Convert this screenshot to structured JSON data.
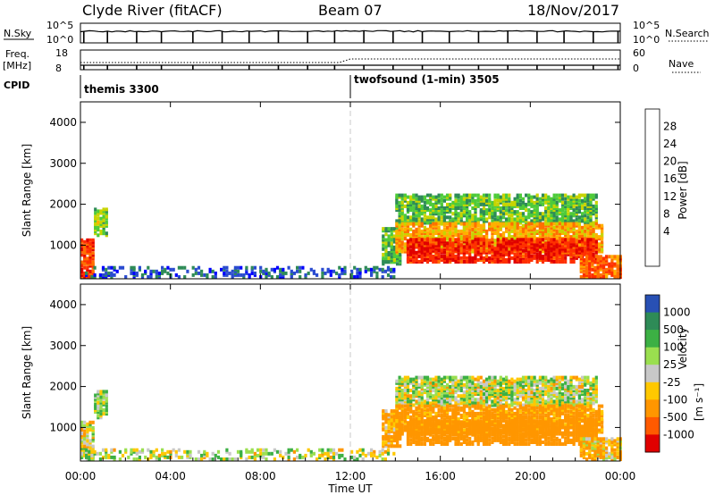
{
  "header": {
    "station": "Clyde River (fitACF)",
    "beam": "Beam 07",
    "date": "18/Nov/2017"
  },
  "top_panels": {
    "nsky_label": "N.Sky",
    "nsky_ticks": [
      "10^5",
      "10^0"
    ],
    "nsearch_label": "N.Search",
    "nsearch_ticks": [
      "10^5",
      "10^0"
    ],
    "freq_label_1": "Freq.",
    "freq_label_2": "[MHz]",
    "freq_ticks": [
      "18",
      "8"
    ],
    "nave_label": "Nave",
    "nave_ticks": [
      "60",
      "0"
    ],
    "cpid_label": "CPID",
    "cpid_segments": [
      {
        "name": "themis 3300",
        "start_hour": 0
      },
      {
        "name": "twofsound (1-min) 3505",
        "start_hour": 12
      }
    ]
  },
  "panels": [
    {
      "name": "power",
      "ylabel": "Slant Range [km]",
      "yticks": [
        "4000",
        "3000",
        "2000",
        "1000"
      ],
      "colorbar_label": "Power [dB]",
      "colorbar_ticks": [
        "28",
        "24",
        "20",
        "16",
        "12",
        "8",
        "4"
      ],
      "colors": [
        "#0000ff",
        "#2a4bd0",
        "#2e8b57",
        "#4ecb3a",
        "#c8d400",
        "#ffb000",
        "#ff7000",
        "#ff3000",
        "#e00000"
      ]
    },
    {
      "name": "velocity",
      "ylabel": "Slant Range [km]",
      "yticks": [
        "4000",
        "3000",
        "2000",
        "1000"
      ],
      "colorbar_label": "Velocity",
      "colorbar_unit": "[m s⁻¹]",
      "colorbar_ticks": [
        "1000",
        "500",
        "100",
        "25",
        "-25",
        "-100",
        "-500",
        "-1000"
      ],
      "colors": [
        "#2850b4",
        "#2e8b57",
        "#3cb044",
        "#9adf4f",
        "#c8c8c8",
        "#ffc800",
        "#ff9600",
        "#ff5a00",
        "#e00000"
      ]
    }
  ],
  "xaxis": {
    "label": "Time UT",
    "ticks": [
      "00:00",
      "04:00",
      "08:00",
      "12:00",
      "16:00",
      "20:00",
      "00:00"
    ]
  },
  "chart_data": {
    "type": "heatmap",
    "title": "Clyde River (fitACF)",
    "subtitle": "Beam 07 18/Nov/2017",
    "xlabel": "Time UT",
    "ylabel": "Slant Range [km]",
    "xlim_hours": [
      0,
      24
    ],
    "ylim_km": [
      180,
      4500
    ],
    "vertical_marker_hour": 12,
    "power_scale_db": [
      0,
      32
    ],
    "velocity_scale_ms": [
      -1000,
      1000
    ],
    "scatter_regions": [
      {
        "t_start": 0.0,
        "t_end": 0.6,
        "r_min": 180,
        "r_max": 1100,
        "power_db": 26,
        "velocity": 0
      },
      {
        "t_start": 0.6,
        "t_end": 1.2,
        "r_min": 1200,
        "r_max": 1850,
        "power_db": 14,
        "velocity": 80
      },
      {
        "t_start": 0.2,
        "t_end": 11.8,
        "r_min": 180,
        "r_max": 450,
        "power_db": 6,
        "velocity": 30
      },
      {
        "t_start": 13.4,
        "t_end": 14.2,
        "r_min": 500,
        "r_max": 1400,
        "power_db": 12,
        "velocity": -150
      },
      {
        "t_start": 14.0,
        "t_end": 23.0,
        "r_min": 1500,
        "r_max": 2200,
        "power_db": 12,
        "velocity": 25
      },
      {
        "t_start": 14.0,
        "t_end": 23.2,
        "r_min": 800,
        "r_max": 1500,
        "power_db": 20,
        "velocity": -200
      },
      {
        "t_start": 14.5,
        "t_end": 23.0,
        "r_min": 550,
        "r_max": 1100,
        "power_db": 28,
        "velocity": -300
      },
      {
        "t_start": 22.2,
        "t_end": 24.0,
        "r_min": 180,
        "r_max": 700,
        "power_db": 24,
        "velocity": -100
      },
      {
        "t_start": 12.0,
        "t_end": 14.0,
        "r_min": 180,
        "r_max": 450,
        "power_db": 6,
        "velocity": 30
      }
    ]
  }
}
